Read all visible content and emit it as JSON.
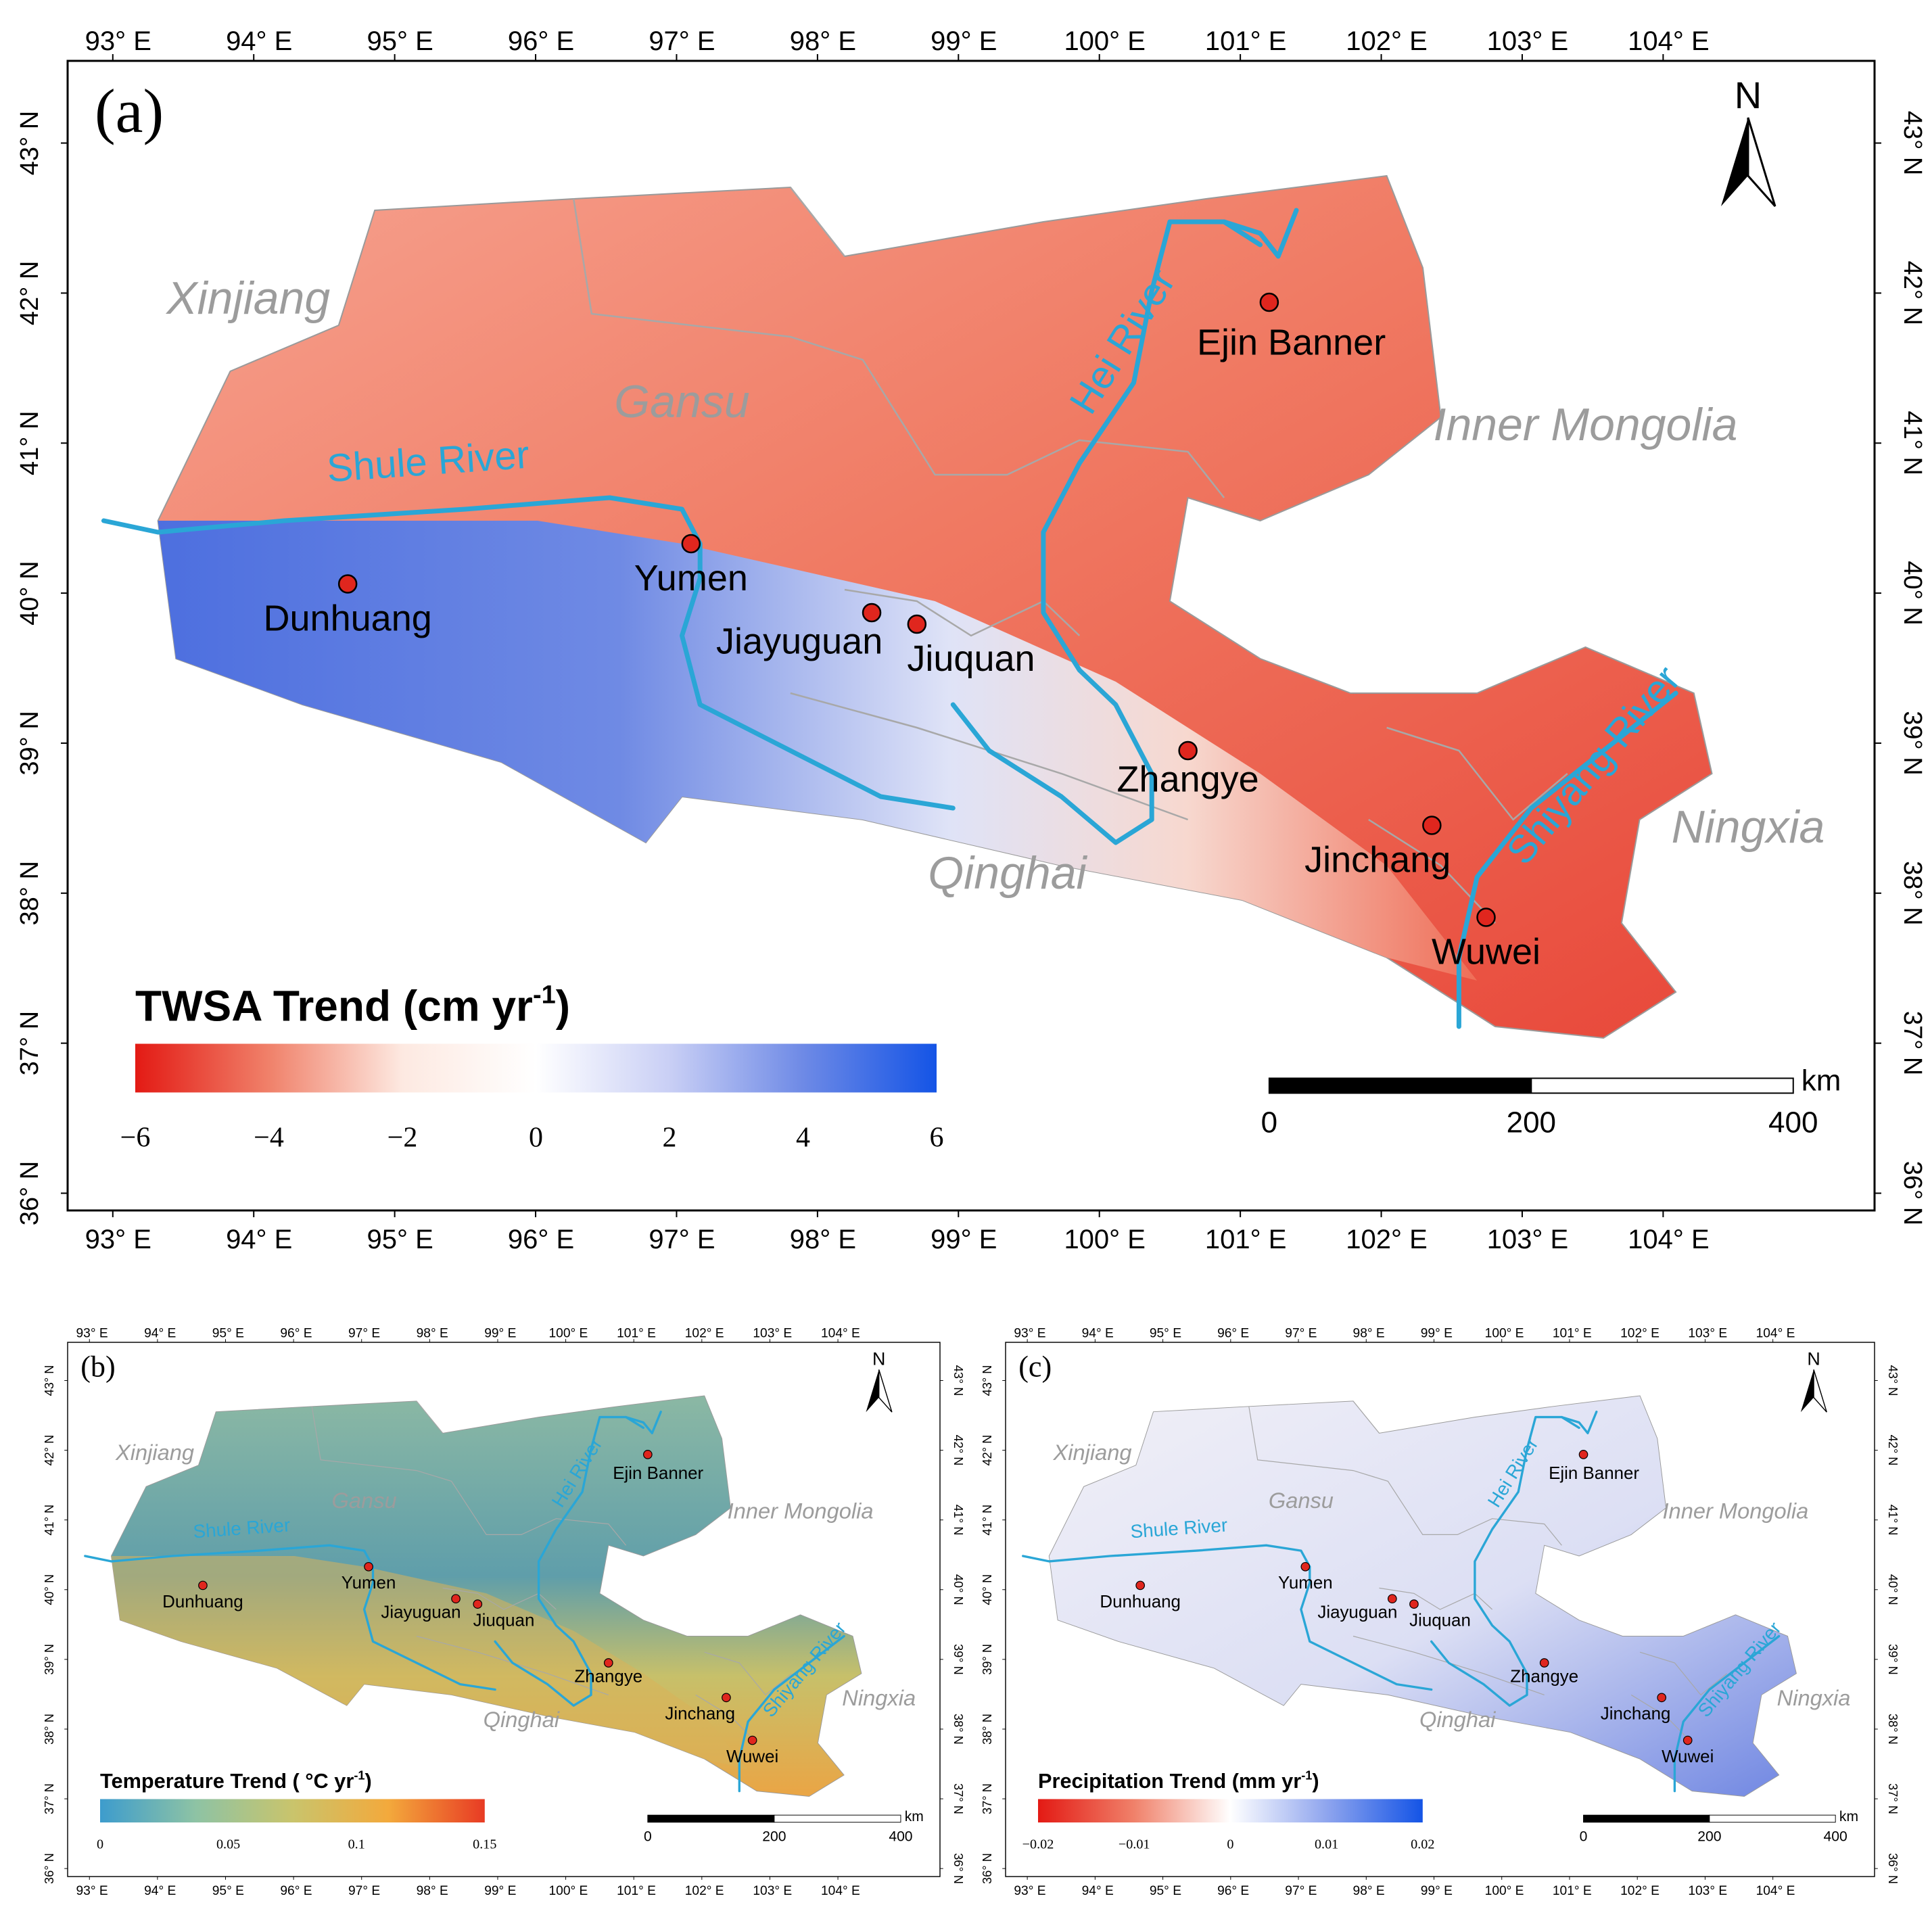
{
  "colors": {
    "river": "#2aa6d6",
    "region_label": "#9c9c9c",
    "city_dot": "#e0261e",
    "warm": "#e8483a",
    "cool": "#4a6fe0",
    "frame": "#000000"
  },
  "lon_ticks": [
    "93° E",
    "94° E",
    "95° E",
    "96° E",
    "97° E",
    "98° E",
    "99° E",
    "100° E",
    "101° E",
    "102° E",
    "103° E",
    "104° E"
  ],
  "lat_ticks": [
    "36° N",
    "37° N",
    "38° N",
    "39° N",
    "40° N",
    "41° N",
    "42° N",
    "43° N"
  ],
  "north_label": "N",
  "km_label": "km",
  "scale_ticks": [
    "0",
    "200",
    "400"
  ],
  "regions": [
    "Xinjiang",
    "Gansu",
    "Inner Mongolia",
    "Qinghai",
    "Ningxia"
  ],
  "rivers": [
    "Shule River",
    "Hei River",
    "Shiyang River"
  ],
  "cities": [
    "Ejin Banner",
    "Yumen",
    "Dunhuang",
    "Jiayuguan",
    "Jiuquan",
    "Zhangye",
    "Jinchang",
    "Wuwei"
  ],
  "panels": [
    {
      "id": "a",
      "label": "(a)",
      "legend_title": "TWSA Trend (cm  yr",
      "legend_sup": "-1",
      "legend_close": ")",
      "legend_ticks": [
        "−6",
        "−4",
        "−2",
        "0",
        "2",
        "4",
        "6"
      ],
      "colors": [
        "#e31a14",
        "#f0816a",
        "#fde9e1",
        "#ffffff",
        "#c9cff5",
        "#6e8ae6",
        "#1454e6"
      ]
    },
    {
      "id": "b",
      "label": "(b)",
      "legend_title": "Temperature Trend ( °C  yr",
      "legend_sup": "-1",
      "legend_close": ")",
      "legend_ticks": [
        "0",
        "0.05",
        "0.1",
        "0.15"
      ],
      "colors": [
        "#3d9ccd",
        "#8ec3a4",
        "#c9c46c",
        "#f3a93c",
        "#e83b24"
      ]
    },
    {
      "id": "c",
      "label": "(c)",
      "legend_title": "Precipitation Trend (mm  yr",
      "legend_sup": "-1",
      "legend_close": ")",
      "legend_ticks": [
        "−0.02",
        "−0.01",
        "0",
        "0.01",
        "0.02"
      ],
      "colors": [
        "#e31a14",
        "#f0816a",
        "#ffffff",
        "#8fa5ee",
        "#1454e6"
      ]
    }
  ]
}
